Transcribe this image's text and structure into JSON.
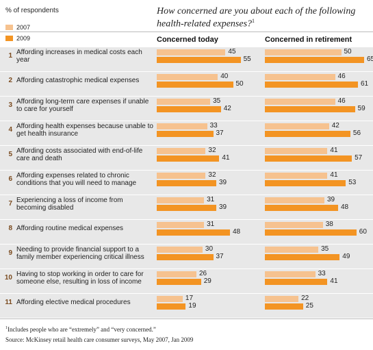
{
  "unit_label": "% of respondents",
  "footnote_marker": "1",
  "footnote_text": "Includes people who are “extremely” and “very concerned.”",
  "source": "Source: McKinsey retail health care consumer surveys, May 2007, Jan 2009",
  "colors": {
    "y2007": "#f6c28f",
    "y2009": "#f39423",
    "row_bg": "#e8e8e8",
    "number": "#7a4a1e"
  },
  "chart_data": {
    "type": "bar",
    "orientation": "horizontal",
    "title": "How concerned are you about each of the following health-related expenses?",
    "title_marker": "1",
    "legend": [
      "2007",
      "2009"
    ],
    "legend_placement": "top-left",
    "panels": [
      "Concerned today",
      "Concerned in retirement"
    ],
    "categories": [
      {
        "num": "1",
        "label": "Affording increases in medical costs each year"
      },
      {
        "num": "2",
        "label": "Affording catastrophic medical expenses"
      },
      {
        "num": "3",
        "label": "Affording long-term care expenses if unable to care for yourself"
      },
      {
        "num": "4",
        "label": "Affording health expenses because unable to get health insurance"
      },
      {
        "num": "5",
        "label": "Affording costs associated with end-of-life care and death"
      },
      {
        "num": "6",
        "label": "Affording expenses related to chronic conditions that you will need to manage"
      },
      {
        "num": "7",
        "label": "Experiencing a loss of income from becoming disabled"
      },
      {
        "num": "8",
        "label": "Affording routine medical expenses"
      },
      {
        "num": "9",
        "label": "Needing to provide financial support to a family member experiencing critical illness"
      },
      {
        "num": "10",
        "label": "Having to stop working in order to care for someone else, resulting in loss of income"
      },
      {
        "num": "11",
        "label": "Affording elective medical procedures"
      }
    ],
    "series": [
      {
        "name": "2007",
        "panel": "Concerned today",
        "values": [
          45,
          40,
          35,
          33,
          32,
          32,
          31,
          31,
          30,
          26,
          17
        ]
      },
      {
        "name": "2009",
        "panel": "Concerned today",
        "values": [
          55,
          50,
          42,
          37,
          41,
          39,
          39,
          48,
          37,
          29,
          19
        ]
      },
      {
        "name": "2007",
        "panel": "Concerned in retirement",
        "values": [
          50,
          46,
          46,
          42,
          41,
          41,
          39,
          38,
          35,
          33,
          22
        ]
      },
      {
        "name": "2009",
        "panel": "Concerned in retirement",
        "values": [
          65,
          61,
          59,
          56,
          57,
          53,
          48,
          60,
          49,
          41,
          25
        ]
      }
    ],
    "xlim": [
      0,
      65
    ],
    "grid": false
  }
}
